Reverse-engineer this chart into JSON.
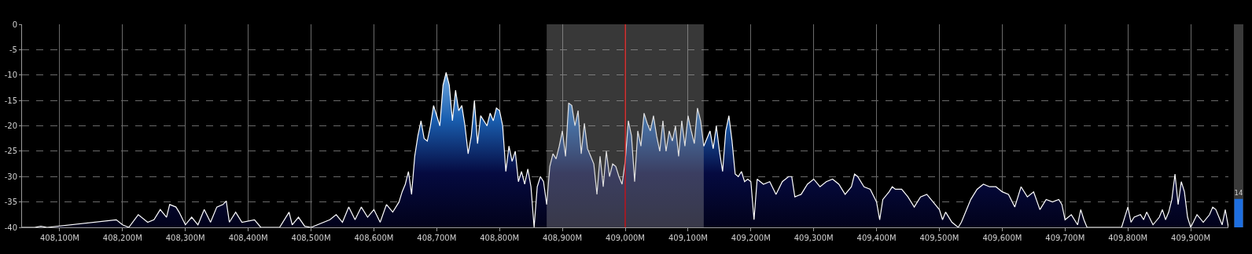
{
  "chart_data": [
    {
      "type": "area",
      "xlim": [
        408040,
        409960
      ],
      "ylim": [
        -40,
        0
      ],
      "xticks": [
        {
          "value": 408100,
          "label": "408,100M"
        },
        {
          "value": 408200,
          "label": "408,200M"
        },
        {
          "value": 408300,
          "label": "408,300M"
        },
        {
          "value": 408400,
          "label": "408,400M"
        },
        {
          "value": 408500,
          "label": "408,500M"
        },
        {
          "value": 408600,
          "label": "408,600M"
        },
        {
          "value": 408700,
          "label": "408,700M"
        },
        {
          "value": 408800,
          "label": "408,800M"
        },
        {
          "value": 408900,
          "label": "408,900M"
        },
        {
          "value": 409000,
          "label": "409,000M"
        },
        {
          "value": 409100,
          "label": "409,100M"
        },
        {
          "value": 409200,
          "label": "409,200M"
        },
        {
          "value": 409300,
          "label": "409,300M"
        },
        {
          "value": 409400,
          "label": "409,400M"
        },
        {
          "value": 409500,
          "label": "409,500M"
        },
        {
          "value": 409600,
          "label": "409,600M"
        },
        {
          "value": 409700,
          "label": "409,700M"
        },
        {
          "value": 409800,
          "label": "409,800M"
        },
        {
          "value": 409900,
          "label": "409,900M"
        }
      ],
      "yticks": [
        -40,
        -35,
        -30,
        -25,
        -20,
        -15,
        -10,
        -5,
        0
      ],
      "grid": true,
      "x": [
        408040,
        408060,
        408070,
        408080,
        408190,
        408200,
        408210,
        408225,
        408240,
        408250,
        408260,
        408270,
        408275,
        408285,
        408290,
        408300,
        408310,
        408320,
        408330,
        408340,
        408350,
        408360,
        408365,
        408370,
        408380,
        408390,
        408410,
        408420,
        408450,
        408465,
        408470,
        408480,
        408490,
        408500,
        408530,
        408540,
        408550,
        408560,
        408570,
        408580,
        408590,
        408600,
        408610,
        408620,
        408630,
        408640,
        408645,
        408650,
        408655,
        408660,
        408665,
        408670,
        408675,
        408680,
        408685,
        408690,
        408695,
        408700,
        408705,
        408710,
        408715,
        408720,
        408725,
        408730,
        408735,
        408740,
        408745,
        408750,
        408755,
        408760,
        408765,
        408770,
        408775,
        408780,
        408785,
        408790,
        408795,
        408800,
        408805,
        408810,
        408815,
        408820,
        408825,
        408830,
        408835,
        408840,
        408845,
        408850,
        408855,
        408860,
        408865,
        408870,
        408875,
        408880,
        408885,
        408890,
        408895,
        408900,
        408905,
        408910,
        408915,
        408920,
        408925,
        408930,
        408935,
        408940,
        408945,
        408950,
        408955,
        408960,
        408965,
        408970,
        408975,
        408980,
        408985,
        408990,
        408995,
        409000,
        409005,
        409010,
        409015,
        409020,
        409025,
        409030,
        409035,
        409040,
        409045,
        409050,
        409055,
        409060,
        409065,
        409070,
        409075,
        409080,
        409085,
        409090,
        409095,
        409100,
        409105,
        409110,
        409115,
        409120,
        409125,
        409130,
        409135,
        409140,
        409145,
        409150,
        409155,
        409160,
        409165,
        409170,
        409175,
        409180,
        409185,
        409190,
        409195,
        409200,
        409205,
        409210,
        409220,
        409230,
        409240,
        409250,
        409260,
        409265,
        409270,
        409280,
        409290,
        409300,
        409310,
        409320,
        409330,
        409340,
        409350,
        409360,
        409365,
        409370,
        409380,
        409390,
        409400,
        409405,
        409410,
        409420,
        409425,
        409430,
        409440,
        409450,
        409460,
        409470,
        409480,
        409490,
        409500,
        409505,
        409510,
        409520,
        409530,
        409535,
        409540,
        409550,
        409560,
        409570,
        409580,
        409590,
        409600,
        409610,
        409620,
        409630,
        409640,
        409650,
        409660,
        409670,
        409680,
        409690,
        409695,
        409700,
        409710,
        409720,
        409725,
        409730,
        409735,
        409790,
        409800,
        409805,
        409810,
        409820,
        409825,
        409830,
        409840,
        409850,
        409855,
        409860,
        409865,
        409870,
        409875,
        409880,
        409885,
        409890,
        409895,
        409900,
        409910,
        409920,
        409930,
        409935,
        409940,
        409950,
        409955,
        409960
      ],
      "series": [
        {
          "color": "#ffffff",
          "values": [
            -40,
            -40,
            -39.8,
            -40,
            -38.5,
            -39.5,
            -40,
            -37.5,
            -39,
            -38.5,
            -36.5,
            -38,
            -35.5,
            -36,
            -37,
            -39.5,
            -38,
            -39.5,
            -36.5,
            -39,
            -36,
            -35.5,
            -34.8,
            -39,
            -37,
            -39,
            -38.5,
            -40,
            -40,
            -37,
            -39.5,
            -38,
            -39.8,
            -40,
            -38.5,
            -37.5,
            -39,
            -36,
            -38.5,
            -36,
            -38,
            -36.5,
            -39,
            -35.5,
            -37,
            -35,
            -33,
            -31.5,
            -29,
            -33.5,
            -26,
            -22,
            -19,
            -22.5,
            -23,
            -20,
            -16,
            -18,
            -20,
            -12,
            -9.5,
            -12,
            -19,
            -13,
            -17,
            -16,
            -20,
            -25.5,
            -22,
            -15,
            -23.5,
            -18,
            -19,
            -20,
            -17.5,
            -19,
            -16.5,
            -17,
            -20,
            -29,
            -24,
            -27,
            -25,
            -31,
            -29,
            -31.5,
            -28.5,
            -32,
            -40,
            -32,
            -30,
            -31,
            -35.5,
            -28,
            -25.5,
            -26.5,
            -24,
            -21,
            -26,
            -15.5,
            -16,
            -20,
            -17,
            -25.5,
            -19.5,
            -24.5,
            -26,
            -27.5,
            -33.5,
            -26,
            -32,
            -25,
            -30,
            -27.5,
            -28,
            -30,
            -31.5,
            -27,
            -19,
            -22,
            -31,
            -21,
            -24,
            -17.5,
            -19.5,
            -21,
            -18,
            -22,
            -25,
            -19,
            -25,
            -21,
            -23,
            -20,
            -26,
            -19,
            -24,
            -18,
            -21,
            -23.5,
            -16.5,
            -19,
            -24,
            -22.5,
            -21,
            -24.5,
            -20,
            -25,
            -29,
            -21,
            -18,
            -23,
            -29.5,
            -30,
            -29,
            -31,
            -30.5,
            -31,
            -38.5,
            -30.5,
            -31.5,
            -31,
            -33.5,
            -31,
            -30,
            -30,
            -34,
            -33.5,
            -31.5,
            -30.5,
            -32,
            -31,
            -30.5,
            -31.5,
            -33.5,
            -32,
            -29.5,
            -30,
            -32,
            -32.5,
            -35,
            -38.5,
            -34.5,
            -33,
            -32,
            -32.5,
            -32.5,
            -34,
            -36,
            -34,
            -33.5,
            -35,
            -36.5,
            -38.5,
            -37,
            -39,
            -40,
            -39,
            -37.5,
            -34.5,
            -32.5,
            -31.5,
            -32,
            -32,
            -33,
            -33.5,
            -36,
            -32,
            -34,
            -33,
            -36.5,
            -34.5,
            -35,
            -34.5,
            -35.5,
            -38.5,
            -37.5,
            -39.5,
            -36.5,
            -38.5,
            -40,
            -40,
            -36,
            -39,
            -38,
            -37.5,
            -38.5,
            -37,
            -39.5,
            -38,
            -36.5,
            -38.5,
            -37,
            -34.5,
            -29.5,
            -35.5,
            -31,
            -33,
            -38,
            -40,
            -37.5,
            -39,
            -37.5,
            -36,
            -36.5,
            -39.5,
            -36.5,
            -40
          ]
        }
      ],
      "bands": [
        {
          "axis": "x",
          "from": 408875,
          "to": 409125,
          "color": "#a0a0a0"
        }
      ],
      "ref_lines": [
        {
          "axis": "x",
          "value": 409000,
          "color": "#ff0000"
        }
      ]
    },
    {
      "type": "bar",
      "categories": [
        null
      ],
      "values": [
        14
      ],
      "colors": [
        "#1e6fe0"
      ],
      "ylim": [
        0,
        100
      ],
      "data_labels": true,
      "tick_labels": false
    }
  ]
}
